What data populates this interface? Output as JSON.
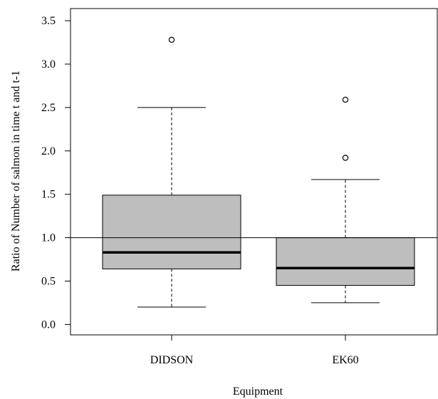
{
  "chart_data": {
    "type": "box",
    "xlabel": "Equipment",
    "ylabel": "Ratio of Number of salmon in time t and t-1",
    "ylim": [
      -0.12,
      3.64
    ],
    "yticks": [
      0.0,
      0.5,
      1.0,
      1.5,
      2.0,
      2.5,
      3.0,
      3.5
    ],
    "ytick_labels": [
      "0.0",
      "0.5",
      "1.0",
      "1.5",
      "2.0",
      "2.5",
      "3.0",
      "3.5"
    ],
    "categories": [
      "DIDSON",
      "EK60"
    ],
    "boxes": [
      {
        "name": "DIDSON",
        "whisker_low": 0.2,
        "q1": 0.64,
        "median": 0.83,
        "q3": 1.49,
        "whisker_high": 2.5,
        "outliers": [
          3.28
        ]
      },
      {
        "name": "EK60",
        "whisker_low": 0.25,
        "q1": 0.45,
        "median": 0.65,
        "q3": 1.0,
        "whisker_high": 1.67,
        "outliers": [
          1.92,
          2.59
        ]
      }
    ],
    "reference_line": {
      "y": 1.0
    },
    "box_fill": "#bebebe",
    "grid": false
  }
}
